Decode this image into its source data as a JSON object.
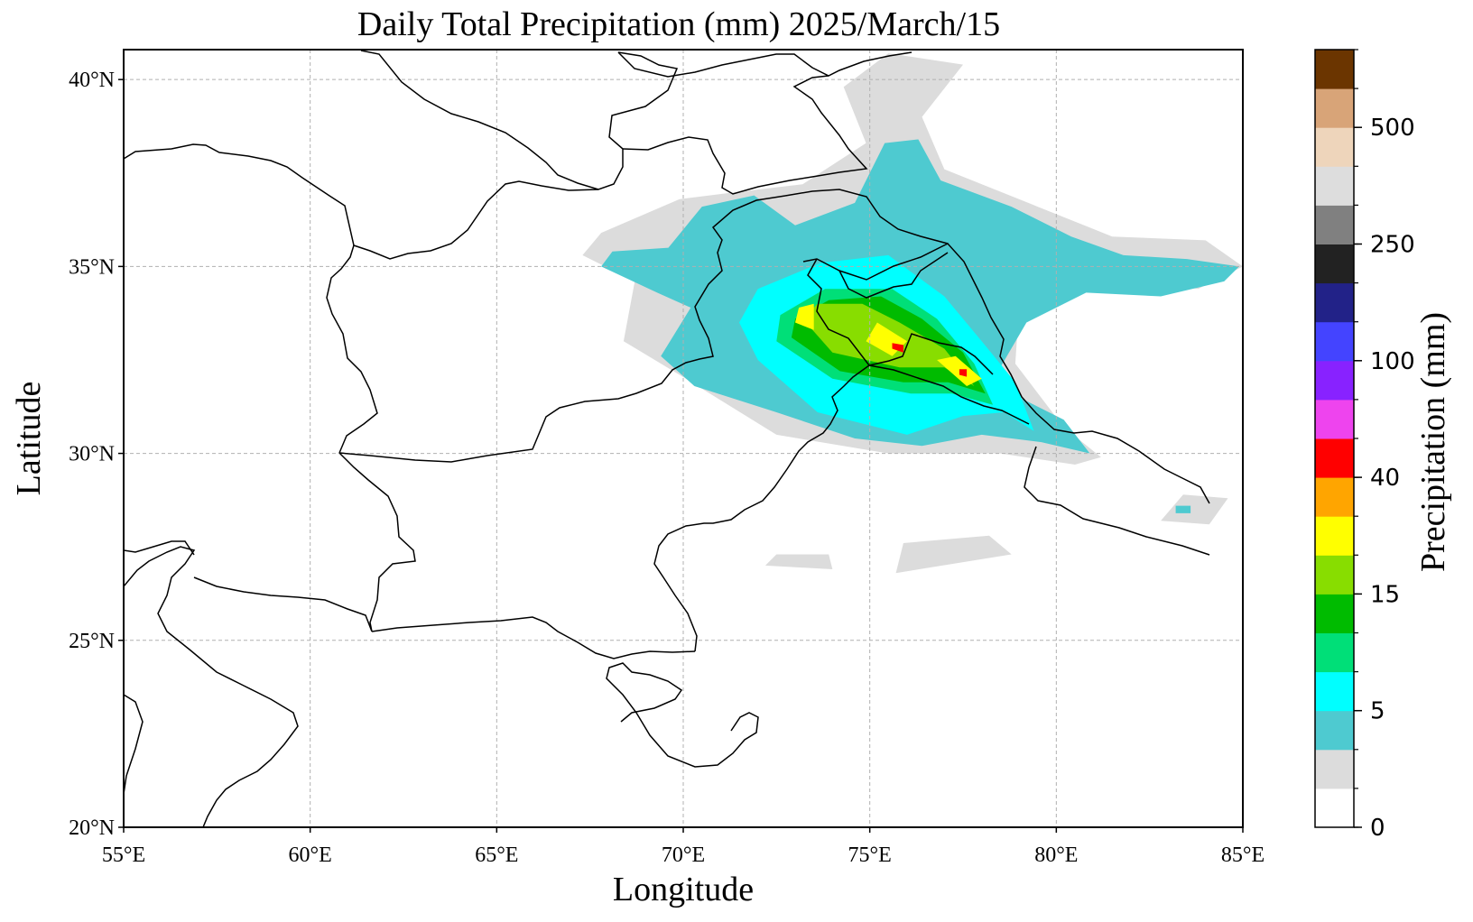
{
  "title": "Daily Total Precipitation (mm)  2025/March/15",
  "xlabel": "Longitude",
  "ylabel": "Latitude",
  "lon_ticks": [
    {
      "value": 55,
      "label": "55°E"
    },
    {
      "value": 60,
      "label": "60°E"
    },
    {
      "value": 65,
      "label": "65°E"
    },
    {
      "value": 70,
      "label": "70°E"
    },
    {
      "value": 75,
      "label": "75°E"
    },
    {
      "value": 80,
      "label": "80°E"
    },
    {
      "value": 85,
      "label": "85°E"
    }
  ],
  "lat_ticks": [
    {
      "value": 20,
      "label": "20°N"
    },
    {
      "value": 25,
      "label": "25°N"
    },
    {
      "value": 30,
      "label": "30°N"
    },
    {
      "value": 35,
      "label": "35°N"
    },
    {
      "value": 40,
      "label": "40°N"
    }
  ],
  "extent": {
    "lon": [
      55,
      85
    ],
    "lat": [
      20,
      40.8
    ]
  },
  "colorbar": {
    "label": "Precipitation (mm)",
    "colors": [
      "#ffffff",
      "#dcdcdc",
      "#4ecad0",
      "#00ffff",
      "#00df78",
      "#00bb00",
      "#88dd00",
      "#ffff00",
      "#ffa500",
      "#ff0000",
      "#ee44ee",
      "#8822ff",
      "#4444ff",
      "#222288",
      "#222222",
      "#808080",
      "#dddddd",
      "#eed5bb",
      "#d8a478",
      "#6b3500"
    ],
    "tick_labels": [
      {
        "index": 0,
        "label": "0"
      },
      {
        "index": 3,
        "label": "5"
      },
      {
        "index": 6,
        "label": "15"
      },
      {
        "index": 9,
        "label": "40"
      },
      {
        "index": 12,
        "label": "100"
      },
      {
        "index": 15,
        "label": "250"
      },
      {
        "index": 18,
        "label": "500"
      }
    ]
  },
  "chart_data": {
    "type": "heatmap",
    "title": "Daily Total Precipitation (mm)  2025/March/15",
    "xlabel": "Longitude",
    "ylabel": "Latitude",
    "xlim": [
      55,
      85
    ],
    "ylim": [
      20,
      40.8
    ],
    "grid": true,
    "colorbar_levels_labeled": [
      0,
      5,
      15,
      40,
      100,
      250,
      500
    ],
    "regions": [
      {
        "level": 1,
        "points": [
          [
            68.4,
            33
          ],
          [
            69.9,
            32.1
          ],
          [
            72.5,
            30.5
          ],
          [
            75.5,
            30.0
          ],
          [
            78.5,
            30.0
          ],
          [
            80.5,
            29.7
          ],
          [
            81.2,
            29.9
          ],
          [
            80.2,
            30.7
          ],
          [
            78.9,
            32.4
          ],
          [
            79.0,
            33.9
          ],
          [
            80.6,
            34.8
          ],
          [
            83.8,
            34.4
          ],
          [
            85.0,
            35.0
          ],
          [
            84.0,
            35.7
          ],
          [
            81.5,
            35.8
          ],
          [
            79.5,
            36.6
          ],
          [
            77.0,
            37.6
          ],
          [
            76.4,
            39.0
          ],
          [
            77.5,
            40.4
          ],
          [
            75.5,
            40.7
          ],
          [
            74.3,
            39.8
          ],
          [
            74.9,
            38.3
          ],
          [
            73.2,
            37.2
          ],
          [
            71.5,
            37.0
          ],
          [
            69.9,
            36.8
          ],
          [
            67.8,
            35.9
          ],
          [
            67.3,
            35.3
          ],
          [
            68.7,
            34.6
          ]
        ]
      },
      {
        "level": 2,
        "points": [
          [
            69.4,
            32.6
          ],
          [
            70.3,
            31.8
          ],
          [
            72.5,
            31.1
          ],
          [
            74.6,
            30.4
          ],
          [
            76.4,
            30.2
          ],
          [
            78.0,
            30.5
          ],
          [
            79.6,
            30.3
          ],
          [
            80.9,
            30.0
          ],
          [
            80.2,
            30.9
          ],
          [
            79.0,
            31.5
          ],
          [
            78.5,
            32.3
          ],
          [
            79.2,
            33.5
          ],
          [
            80.8,
            34.3
          ],
          [
            82.8,
            34.2
          ],
          [
            84.5,
            34.6
          ],
          [
            84.9,
            35.0
          ],
          [
            83.5,
            35.2
          ],
          [
            81.8,
            35.3
          ],
          [
            80.4,
            35.8
          ],
          [
            78.8,
            36.6
          ],
          [
            76.9,
            37.3
          ],
          [
            76.3,
            38.4
          ],
          [
            75.4,
            38.3
          ],
          [
            74.6,
            36.7
          ],
          [
            73.0,
            36.1
          ],
          [
            71.9,
            36.9
          ],
          [
            70.5,
            36.6
          ],
          [
            69.6,
            35.5
          ],
          [
            68.1,
            35.4
          ],
          [
            67.8,
            35.0
          ],
          [
            69.3,
            34.3
          ],
          [
            70.2,
            33.9
          ]
        ]
      },
      {
        "level": 3,
        "points": [
          [
            72.0,
            32.5
          ],
          [
            73.6,
            31.1
          ],
          [
            76.0,
            30.5
          ],
          [
            77.5,
            31.0
          ],
          [
            78.6,
            31.1
          ],
          [
            79.4,
            30.6
          ],
          [
            78.9,
            31.9
          ],
          [
            78.0,
            33.0
          ],
          [
            77.0,
            34.2
          ],
          [
            75.5,
            35.3
          ],
          [
            73.7,
            35.1
          ],
          [
            72.0,
            34.4
          ],
          [
            71.5,
            33.5
          ]
        ]
      },
      {
        "level": 4,
        "points": [
          [
            72.5,
            33.0
          ],
          [
            74.0,
            32.0
          ],
          [
            76.1,
            31.6
          ],
          [
            77.2,
            31.6
          ],
          [
            78.3,
            31.3
          ],
          [
            77.8,
            32.4
          ],
          [
            76.8,
            33.6
          ],
          [
            75.6,
            34.4
          ],
          [
            73.8,
            34.4
          ],
          [
            72.6,
            33.7
          ]
        ]
      },
      {
        "level": 5,
        "points": [
          [
            72.9,
            33.1
          ],
          [
            74.2,
            32.2
          ],
          [
            75.9,
            31.9
          ],
          [
            77.1,
            31.9
          ],
          [
            78.1,
            31.6
          ],
          [
            77.5,
            32.7
          ],
          [
            76.4,
            33.6
          ],
          [
            75.3,
            34.2
          ],
          [
            73.9,
            34.1
          ],
          [
            73.0,
            33.6
          ]
        ]
      },
      {
        "level": 6,
        "points": [
          [
            73.2,
            33.6
          ],
          [
            74.0,
            32.7
          ],
          [
            75.8,
            32.3
          ],
          [
            77.0,
            32.3
          ],
          [
            77.8,
            31.8
          ],
          [
            77.0,
            32.8
          ],
          [
            75.8,
            33.5
          ],
          [
            74.8,
            34.0
          ],
          [
            73.6,
            34.0
          ]
        ]
      },
      {
        "level": 7,
        "points": [
          [
            73.0,
            33.5
          ],
          [
            73.5,
            33.3
          ],
          [
            73.5,
            34.0
          ],
          [
            73.1,
            33.9
          ]
        ]
      },
      {
        "level": 7,
        "points": [
          [
            74.9,
            33.0
          ],
          [
            75.6,
            32.6
          ],
          [
            76.0,
            33.0
          ],
          [
            75.2,
            33.5
          ]
        ]
      },
      {
        "level": 7,
        "points": [
          [
            76.8,
            32.5
          ],
          [
            77.6,
            31.8
          ],
          [
            78.0,
            32.0
          ],
          [
            77.3,
            32.6
          ]
        ]
      },
      {
        "level": 9,
        "points": [
          [
            75.6,
            32.8
          ],
          [
            75.9,
            32.7
          ],
          [
            75.9,
            32.9
          ],
          [
            75.6,
            32.95
          ]
        ]
      },
      {
        "level": 9,
        "points": [
          [
            77.4,
            32.1
          ],
          [
            77.6,
            32.05
          ],
          [
            77.6,
            32.25
          ],
          [
            77.4,
            32.25
          ]
        ]
      },
      {
        "level": 1,
        "points": [
          [
            72.2,
            27.0
          ],
          [
            74.0,
            26.9
          ],
          [
            73.9,
            27.3
          ],
          [
            72.5,
            27.3
          ]
        ]
      },
      {
        "level": 1,
        "points": [
          [
            75.7,
            26.8
          ],
          [
            78.8,
            27.3
          ],
          [
            78.2,
            27.8
          ],
          [
            75.9,
            27.6
          ]
        ]
      },
      {
        "level": 1,
        "points": [
          [
            82.8,
            28.2
          ],
          [
            84.1,
            28.1
          ],
          [
            84.6,
            28.8
          ],
          [
            83.4,
            28.9
          ]
        ]
      },
      {
        "level": 2,
        "points": [
          [
            83.2,
            28.4
          ],
          [
            83.6,
            28.4
          ],
          [
            83.6,
            28.6
          ],
          [
            83.2,
            28.6
          ]
        ]
      }
    ]
  }
}
